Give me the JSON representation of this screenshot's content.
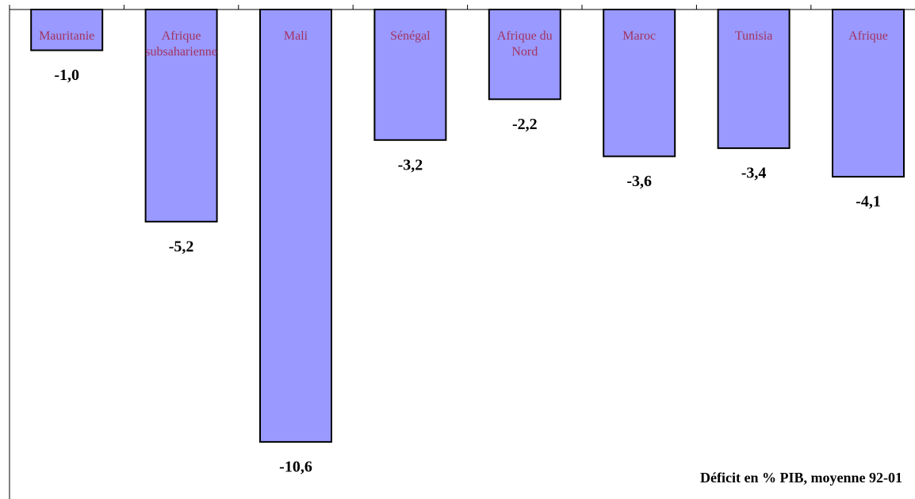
{
  "chart_data": {
    "type": "bar",
    "categories": [
      "Mauritanie",
      "Afrique subsaharienne",
      "Mali",
      "Sénégal",
      "Afrique du Nord",
      "Maroc",
      "Tunisia",
      "Afrique"
    ],
    "values": [
      -1.0,
      -5.2,
      -10.6,
      -3.2,
      -2.2,
      -3.6,
      -3.4,
      -4.1
    ],
    "value_labels": [
      "-1,0",
      "-5,2",
      "-10,6",
      "-3,2",
      "-2,2",
      "-3,6",
      "-3,4",
      "-4,1"
    ],
    "color": "#9999ff",
    "ylim": [
      -12,
      0
    ],
    "annotation": "Déficit en % PIB, moyenne 92-01"
  }
}
